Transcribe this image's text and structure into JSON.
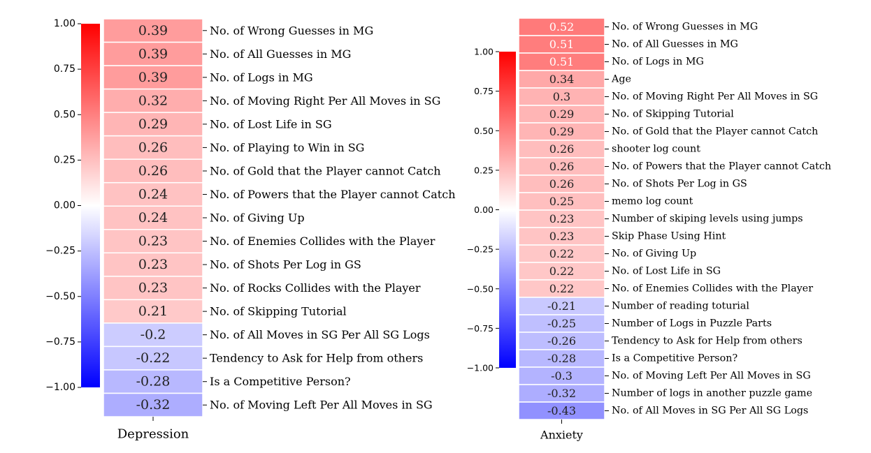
{
  "chart_data": [
    {
      "type": "heatmap",
      "xlabel": "Depression",
      "colorbar": {
        "range": [
          -1.0,
          1.0
        ],
        "ticks": [
          "1.00",
          "0.75",
          "0.50",
          "0.25",
          "0.00",
          "−0.25",
          "−0.50",
          "−0.75",
          "−1.00"
        ],
        "cmap": "bwr"
      },
      "rows": [
        {
          "label": "No. of Wrong Guesses in MG",
          "value": 0.39
        },
        {
          "label": "No. of All Guesses in MG",
          "value": 0.39
        },
        {
          "label": "No. of Logs in MG",
          "value": 0.39
        },
        {
          "label": "No. of Moving Right Per All Moves in SG",
          "value": 0.32
        },
        {
          "label": "No. of Lost Life in SG",
          "value": 0.29
        },
        {
          "label": "No. of Playing to Win in SG",
          "value": 0.26
        },
        {
          "label": "No. of Gold that the Player cannot Catch",
          "value": 0.26
        },
        {
          "label": "No. of Powers that the Player cannot Catch",
          "value": 0.24
        },
        {
          "label": "No. of Giving Up",
          "value": 0.24
        },
        {
          "label": "No. of Enemies Collides with the Player",
          "value": 0.23
        },
        {
          "label": "No. of Shots Per Log in GS",
          "value": 0.23
        },
        {
          "label": "No. of Rocks Collides with the Player",
          "value": 0.23
        },
        {
          "label": "No. of Skipping Tutorial",
          "value": 0.21
        },
        {
          "label": "No. of All Moves in SG Per All SG Logs",
          "value": -0.2
        },
        {
          "label": "Tendency to Ask for Help from others",
          "value": -0.22
        },
        {
          "label": "Is a Competitive Person?",
          "value": -0.28
        },
        {
          "label": "No. of Moving Left Per All Moves in SG",
          "value": -0.32
        }
      ]
    },
    {
      "type": "heatmap",
      "xlabel": "Anxiety",
      "colorbar": {
        "range": [
          -1.0,
          1.0
        ],
        "ticks": [
          "1.00",
          "0.75",
          "0.50",
          "0.25",
          "0.00",
          "−0.25",
          "−0.50",
          "−0.75",
          "−1.00"
        ],
        "cmap": "bwr"
      },
      "rows": [
        {
          "label": "No. of Wrong Guesses in MG",
          "value": 0.52
        },
        {
          "label": "No. of All Guesses in MG",
          "value": 0.51
        },
        {
          "label": "No. of Logs in MG",
          "value": 0.51
        },
        {
          "label": "Age",
          "value": 0.34
        },
        {
          "label": "No. of Moving Right Per All Moves in SG",
          "value": 0.3
        },
        {
          "label": "No. of Skipping Tutorial",
          "value": 0.29
        },
        {
          "label": "No. of Gold that the Player cannot Catch",
          "value": 0.29
        },
        {
          "label": "shooter log count",
          "value": 0.26
        },
        {
          "label": "No. of Powers that the Player cannot Catch",
          "value": 0.26
        },
        {
          "label": "No. of Shots Per Log in GS",
          "value": 0.26
        },
        {
          "label": "memo log count",
          "value": 0.25
        },
        {
          "label": "Number of skiping levels using jumps",
          "value": 0.23
        },
        {
          "label": "Skip Phase Using Hint",
          "value": 0.23
        },
        {
          "label": "No. of Giving Up",
          "value": 0.22
        },
        {
          "label": "No. of Lost Life in SG",
          "value": 0.22
        },
        {
          "label": "No. of Enemies Collides with the Player",
          "value": 0.22
        },
        {
          "label": "Number of reading toturial",
          "value": -0.21
        },
        {
          "label": "Number of Logs in Puzzle Parts",
          "value": -0.25
        },
        {
          "label": "Tendency to Ask for Help from others",
          "value": -0.26
        },
        {
          "label": "Is a Competitive Person?",
          "value": -0.28
        },
        {
          "label": "No. of Moving Left Per All Moves in SG",
          "value": -0.3
        },
        {
          "label": "Number of logs in another puzzle game",
          "value": -0.32
        },
        {
          "label": "No. of All Moves in SG Per All SG Logs",
          "value": -0.43
        }
      ]
    }
  ]
}
